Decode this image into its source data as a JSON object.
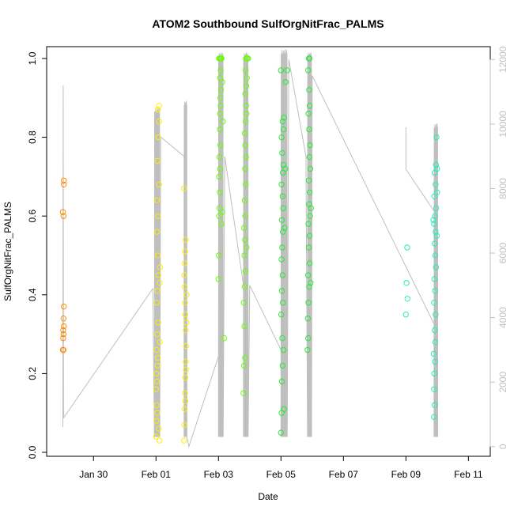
{
  "chart_data": {
    "type": "scatter",
    "title": "ATOM2 Southbound SulfOrgNitFrac_PALMS",
    "xlabel": "Date",
    "ylabel": "SulfOrgNitFrac_PALMS",
    "x_ticks": [
      "Jan 30",
      "Feb 01",
      "Feb 03",
      "Feb 05",
      "Feb 07",
      "Feb 09",
      "Feb 11"
    ],
    "x_tick_days": [
      30,
      32,
      34,
      36,
      38,
      40,
      42
    ],
    "xlim_days": [
      28.5,
      42.7
    ],
    "y_ticks": [
      "0.0",
      "0.2",
      "0.4",
      "0.6",
      "0.8",
      "1.0"
    ],
    "ylim": [
      -0.01,
      1.03
    ],
    "y2_ticks": [
      "0",
      "2000",
      "4000",
      "6000",
      "8000",
      "10000",
      "12000"
    ],
    "y2lim": [
      -300,
      12400
    ],
    "altitude_line_color": "#bfbfbf",
    "series": [
      {
        "color": "#ff8c00",
        "points": [
          [
            29.02,
            0.26
          ],
          [
            29.03,
            0.29
          ],
          [
            29.03,
            0.31
          ],
          [
            29.04,
            0.3
          ],
          [
            29.04,
            0.34
          ],
          [
            29.05,
            0.32
          ],
          [
            29.05,
            0.37
          ],
          [
            29.02,
            0.61
          ],
          [
            29.04,
            0.6
          ],
          [
            29.05,
            0.68
          ],
          [
            29.05,
            0.69
          ],
          [
            29.04,
            0.26
          ]
        ]
      },
      {
        "color": "#ffee00",
        "points": [
          [
            32.0,
            0.04
          ],
          [
            32.01,
            0.08
          ],
          [
            32.02,
            0.12
          ],
          [
            32.03,
            0.18
          ],
          [
            32.05,
            0.22
          ],
          [
            32.06,
            0.24
          ],
          [
            32.04,
            0.3
          ],
          [
            32.07,
            0.33
          ],
          [
            32.02,
            0.38
          ],
          [
            32.05,
            0.41
          ],
          [
            32.08,
            0.45
          ],
          [
            32.06,
            0.5
          ],
          [
            32.03,
            0.56
          ],
          [
            32.07,
            0.6
          ],
          [
            32.1,
            0.68
          ],
          [
            32.05,
            0.74
          ],
          [
            32.08,
            0.8
          ],
          [
            32.1,
            0.84
          ],
          [
            32.06,
            0.87
          ],
          [
            32.1,
            0.88
          ],
          [
            32.12,
            0.43
          ],
          [
            32.13,
            0.47
          ],
          [
            32.0,
            0.16
          ],
          [
            32.01,
            0.2
          ],
          [
            32.02,
            0.26
          ],
          [
            32.04,
            0.1
          ],
          [
            32.09,
            0.06
          ],
          [
            32.11,
            0.03
          ],
          [
            32.12,
            0.28
          ],
          [
            32.03,
            0.64
          ],
          [
            32.9,
            0.03
          ],
          [
            32.91,
            0.07
          ],
          [
            32.92,
            0.11
          ],
          [
            32.93,
            0.15
          ],
          [
            32.94,
            0.19
          ],
          [
            32.95,
            0.23
          ],
          [
            32.96,
            0.27
          ],
          [
            32.95,
            0.31
          ],
          [
            32.94,
            0.35
          ],
          [
            32.93,
            0.38
          ],
          [
            32.92,
            0.42
          ],
          [
            32.91,
            0.45
          ],
          [
            32.92,
            0.48
          ],
          [
            32.93,
            0.51
          ],
          [
            32.95,
            0.54
          ],
          [
            32.9,
            0.67
          ],
          [
            32.94,
            0.13
          ],
          [
            32.96,
            0.21
          ],
          [
            32.97,
            0.33
          ],
          [
            32.98,
            0.4
          ]
        ]
      },
      {
        "color": "#66ff00",
        "points": [
          [
            34.0,
            0.44
          ],
          [
            34.01,
            0.5
          ],
          [
            34.02,
            0.6
          ],
          [
            34.03,
            0.62
          ],
          [
            34.04,
            0.66
          ],
          [
            34.02,
            0.7
          ],
          [
            34.05,
            0.72
          ],
          [
            34.03,
            0.75
          ],
          [
            34.06,
            0.78
          ],
          [
            34.04,
            0.82
          ],
          [
            34.05,
            0.86
          ],
          [
            34.07,
            0.88
          ],
          [
            34.06,
            0.9
          ],
          [
            34.08,
            0.92
          ],
          [
            34.05,
            0.95
          ],
          [
            34.07,
            0.97
          ],
          [
            34.02,
            1.0
          ],
          [
            34.04,
            1.0
          ],
          [
            34.06,
            1.0
          ],
          [
            34.08,
            1.0
          ],
          [
            34.1,
            1.0
          ],
          [
            34.18,
            0.29
          ],
          [
            34.1,
            0.58
          ],
          [
            34.12,
            0.61
          ],
          [
            34.14,
            0.84
          ],
          [
            34.12,
            0.94
          ],
          [
            34.8,
            0.15
          ],
          [
            34.82,
            0.22
          ],
          [
            34.85,
            0.24
          ],
          [
            34.83,
            0.32
          ],
          [
            34.81,
            0.38
          ],
          [
            34.84,
            0.42
          ],
          [
            34.86,
            0.46
          ],
          [
            34.83,
            0.5
          ],
          [
            34.85,
            0.54
          ],
          [
            34.82,
            0.57
          ],
          [
            34.86,
            0.6
          ],
          [
            34.84,
            0.64
          ],
          [
            34.87,
            0.68
          ],
          [
            34.85,
            0.72
          ],
          [
            34.88,
            0.75
          ],
          [
            34.86,
            0.78
          ],
          [
            34.84,
            0.81
          ],
          [
            34.87,
            0.84
          ],
          [
            34.9,
            0.86
          ],
          [
            34.88,
            0.88
          ],
          [
            34.86,
            0.91
          ],
          [
            34.89,
            0.93
          ],
          [
            34.91,
            0.95
          ],
          [
            34.87,
            0.97
          ],
          [
            34.88,
            1.0
          ],
          [
            34.92,
            1.0
          ],
          [
            34.95,
            1.0
          ],
          [
            34.9,
            0.52
          ]
        ]
      },
      {
        "color": "#22ee33",
        "points": [
          [
            36.0,
            0.05
          ],
          [
            36.02,
            0.1
          ],
          [
            36.03,
            0.18
          ],
          [
            36.05,
            0.22
          ],
          [
            36.04,
            0.29
          ],
          [
            36.01,
            0.35
          ],
          [
            36.06,
            0.38
          ],
          [
            36.03,
            0.41
          ],
          [
            36.05,
            0.45
          ],
          [
            36.02,
            0.49
          ],
          [
            36.04,
            0.52
          ],
          [
            36.06,
            0.56
          ],
          [
            36.03,
            0.59
          ],
          [
            36.07,
            0.62
          ],
          [
            36.05,
            0.65
          ],
          [
            36.02,
            0.68
          ],
          [
            36.06,
            0.71
          ],
          [
            36.08,
            0.73
          ],
          [
            36.04,
            0.76
          ],
          [
            36.02,
            0.8
          ],
          [
            36.08,
            0.82
          ],
          [
            36.05,
            0.84
          ],
          [
            36.1,
            0.85
          ],
          [
            36.15,
            0.94
          ],
          [
            36.2,
            0.97
          ],
          [
            36.0,
            0.97
          ],
          [
            36.12,
            0.57
          ],
          [
            36.14,
            0.72
          ],
          [
            36.1,
            0.11
          ],
          [
            36.08,
            0.26
          ],
          [
            36.85,
            0.26
          ],
          [
            36.87,
            0.29
          ],
          [
            36.86,
            0.34
          ],
          [
            36.88,
            0.38
          ],
          [
            36.9,
            0.42
          ],
          [
            36.87,
            0.45
          ],
          [
            36.92,
            0.48
          ],
          [
            36.89,
            0.52
          ],
          [
            36.91,
            0.55
          ],
          [
            36.88,
            0.58
          ],
          [
            36.93,
            0.6
          ],
          [
            36.9,
            0.63
          ],
          [
            36.92,
            0.66
          ],
          [
            36.89,
            0.69
          ],
          [
            36.94,
            0.72
          ],
          [
            36.91,
            0.75
          ],
          [
            36.93,
            0.78
          ],
          [
            36.9,
            0.82
          ],
          [
            36.88,
            0.86
          ],
          [
            36.92,
            0.88
          ],
          [
            36.9,
            0.92
          ],
          [
            36.89,
            1.0
          ],
          [
            36.91,
            1.0
          ],
          [
            36.87,
            0.97
          ],
          [
            36.95,
            0.43
          ],
          [
            36.96,
            0.62
          ]
        ]
      },
      {
        "color": "#22eebb",
        "points": [
          [
            40.0,
            0.35
          ],
          [
            40.05,
            0.39
          ],
          [
            40.02,
            0.43
          ],
          [
            40.04,
            0.52
          ],
          [
            40.9,
            0.09
          ],
          [
            40.92,
            0.12
          ],
          [
            40.91,
            0.2
          ],
          [
            40.93,
            0.23
          ],
          [
            40.89,
            0.25
          ],
          [
            40.94,
            0.28
          ],
          [
            40.92,
            0.31
          ],
          [
            40.95,
            0.35
          ],
          [
            40.9,
            0.38
          ],
          [
            40.93,
            0.41
          ],
          [
            40.91,
            0.44
          ],
          [
            40.96,
            0.47
          ],
          [
            40.94,
            0.5
          ],
          [
            40.92,
            0.53
          ],
          [
            40.95,
            0.56
          ],
          [
            40.9,
            0.58
          ],
          [
            40.93,
            0.6
          ],
          [
            40.97,
            0.62
          ],
          [
            40.91,
            0.65
          ],
          [
            40.95,
            0.68
          ],
          [
            40.92,
            0.71
          ],
          [
            40.96,
            0.73
          ],
          [
            40.98,
            0.8
          ],
          [
            41.0,
            0.72
          ],
          [
            40.99,
            0.55
          ],
          [
            41.0,
            0.66
          ],
          [
            40.88,
            0.59
          ],
          [
            40.9,
            0.16
          ]
        ]
      }
    ]
  }
}
